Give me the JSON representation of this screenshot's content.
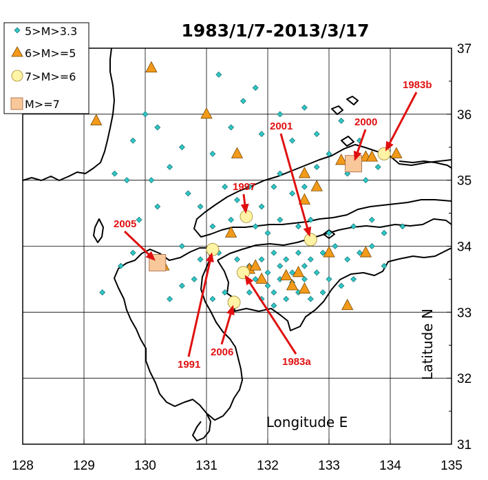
{
  "title": "1983/1/7-2013/3/17",
  "axes": {
    "xlabel": "Longitude E",
    "ylabel": "Latitude N",
    "xlim": [
      128,
      135
    ],
    "ylim": [
      31,
      37
    ],
    "xticks": [
      "128",
      "129",
      "130",
      "131",
      "132",
      "133",
      "134",
      "135"
    ],
    "yticks": [
      "31",
      "32",
      "33",
      "34",
      "35",
      "36",
      "37"
    ]
  },
  "legend": {
    "placement": "top-left",
    "items": [
      {
        "label": "5>M>3.3",
        "marker": "diamond"
      },
      {
        "label": "6>M>=5",
        "marker": "triangle"
      },
      {
        "label": "7>M>=6",
        "marker": "circle"
      },
      {
        "label": "M>=7",
        "marker": "square"
      }
    ]
  },
  "colors": {
    "small": "#2ec6c6",
    "medium": "#f39a1a",
    "large": "#fff3a6",
    "major": "#f9c89a",
    "annotation": "#e01010",
    "coast": "#000000"
  },
  "chart_data": {
    "type": "scatter",
    "series": [
      {
        "name": "5>M>3.3",
        "marker": "diamond",
        "points": [
          [
            131.2,
            36.6
          ],
          [
            131.8,
            36.4
          ],
          [
            131.6,
            36.2
          ],
          [
            132.2,
            36.0
          ],
          [
            131.4,
            35.8
          ],
          [
            131.9,
            35.7
          ],
          [
            132.4,
            35.6
          ],
          [
            131.1,
            35.4
          ],
          [
            130.6,
            35.5
          ],
          [
            130.4,
            35.2
          ],
          [
            130.1,
            35.0
          ],
          [
            130.7,
            34.8
          ],
          [
            130.9,
            34.6
          ],
          [
            131.3,
            34.9
          ],
          [
            131.5,
            34.7
          ],
          [
            131.7,
            34.9
          ],
          [
            131.9,
            34.6
          ],
          [
            132.1,
            34.9
          ],
          [
            132.4,
            34.8
          ],
          [
            132.6,
            34.9
          ],
          [
            132.8,
            35.2
          ],
          [
            133.0,
            35.4
          ],
          [
            133.3,
            35.1
          ],
          [
            133.6,
            35.0
          ],
          [
            133.8,
            35.2
          ],
          [
            132.2,
            35.1
          ],
          [
            131.1,
            34.3
          ],
          [
            131.4,
            34.4
          ],
          [
            131.8,
            34.3
          ],
          [
            132.0,
            34.2
          ],
          [
            132.2,
            34.4
          ],
          [
            132.5,
            34.3
          ],
          [
            132.7,
            34.4
          ],
          [
            133.0,
            34.2
          ],
          [
            133.4,
            34.3
          ],
          [
            133.7,
            34.4
          ],
          [
            133.9,
            34.2
          ],
          [
            134.2,
            34.3
          ],
          [
            130.6,
            34.0
          ],
          [
            130.9,
            33.8
          ],
          [
            131.2,
            33.9
          ],
          [
            131.5,
            33.8
          ],
          [
            131.7,
            33.7
          ],
          [
            131.9,
            33.8
          ],
          [
            132.1,
            33.9
          ],
          [
            132.3,
            33.8
          ],
          [
            132.5,
            33.9
          ],
          [
            132.7,
            33.8
          ],
          [
            132.9,
            33.9
          ],
          [
            133.1,
            34.0
          ],
          [
            133.3,
            33.8
          ],
          [
            133.5,
            33.9
          ],
          [
            133.7,
            34.0
          ],
          [
            133.9,
            33.7
          ],
          [
            131.6,
            33.6
          ],
          [
            131.8,
            33.5
          ],
          [
            132.0,
            33.6
          ],
          [
            132.2,
            33.5
          ],
          [
            132.4,
            33.6
          ],
          [
            132.6,
            33.5
          ],
          [
            132.8,
            33.6
          ],
          [
            133.0,
            33.5
          ],
          [
            133.2,
            33.4
          ],
          [
            133.4,
            33.5
          ],
          [
            131.7,
            33.3
          ],
          [
            131.9,
            33.2
          ],
          [
            132.1,
            33.3
          ],
          [
            132.3,
            33.2
          ],
          [
            132.5,
            33.3
          ],
          [
            132.7,
            33.2
          ],
          [
            132.9,
            33.3
          ],
          [
            132.0,
            33.4
          ],
          [
            132.2,
            33.7
          ],
          [
            132.4,
            33.45
          ],
          [
            132.6,
            33.7
          ],
          [
            132.1,
            33.1
          ],
          [
            131.3,
            33.3
          ],
          [
            131.1,
            33.2
          ],
          [
            130.8,
            33.5
          ],
          [
            130.6,
            33.4
          ],
          [
            130.4,
            33.2
          ],
          [
            129.6,
            33.7
          ],
          [
            129.8,
            33.9
          ],
          [
            129.3,
            33.3
          ],
          [
            129.9,
            34.4
          ],
          [
            130.2,
            34.6
          ],
          [
            129.5,
            35.1
          ],
          [
            129.7,
            35.0
          ],
          [
            130.2,
            35.8
          ],
          [
            130.0,
            36.0
          ],
          [
            129.8,
            35.6
          ],
          [
            132.8,
            35.7
          ],
          [
            133.2,
            35.9
          ],
          [
            133.5,
            35.6
          ],
          [
            132.6,
            36.1
          ]
        ]
      },
      {
        "name": "6>M>=5",
        "marker": "triangle",
        "points": [
          [
            130.1,
            36.7
          ],
          [
            129.2,
            35.9
          ],
          [
            131.0,
            36.0
          ],
          [
            131.5,
            35.4
          ],
          [
            132.6,
            35.1
          ],
          [
            132.8,
            34.9
          ],
          [
            132.6,
            34.7
          ],
          [
            133.2,
            35.3
          ],
          [
            133.6,
            35.35
          ],
          [
            133.7,
            35.35
          ],
          [
            134.1,
            35.4
          ],
          [
            131.4,
            34.2
          ],
          [
            133.0,
            33.9
          ],
          [
            133.6,
            33.9
          ],
          [
            131.7,
            33.65
          ],
          [
            131.9,
            33.5
          ],
          [
            132.3,
            33.55
          ],
          [
            132.5,
            33.6
          ],
          [
            132.4,
            33.4
          ],
          [
            132.6,
            33.35
          ],
          [
            133.3,
            33.1
          ],
          [
            130.3,
            33.7
          ],
          [
            131.8,
            33.7
          ]
        ]
      },
      {
        "name": "7>M>=6",
        "marker": "circle",
        "points": [
          [
            131.1,
            33.95
          ],
          [
            131.65,
            34.45
          ],
          [
            132.7,
            34.1
          ],
          [
            133.9,
            35.4
          ],
          [
            131.6,
            33.6
          ],
          [
            131.45,
            33.15
          ]
        ]
      },
      {
        "name": "M>=7",
        "marker": "square",
        "points": [
          [
            133.4,
            35.25
          ],
          [
            130.2,
            33.75
          ]
        ]
      }
    ],
    "annotations": [
      {
        "label": "1983b",
        "point": [
          133.9,
          35.4
        ]
      },
      {
        "label": "2000",
        "point": [
          133.4,
          35.25
        ]
      },
      {
        "label": "2001",
        "point": [
          132.7,
          34.1
        ]
      },
      {
        "label": "1997",
        "point": [
          131.65,
          34.45
        ]
      },
      {
        "label": "2005",
        "point": [
          130.2,
          33.75
        ]
      },
      {
        "label": "1991",
        "point": [
          131.1,
          33.95
        ]
      },
      {
        "label": "2006",
        "point": [
          131.45,
          33.15
        ]
      },
      {
        "label": "1983a",
        "point": [
          131.6,
          33.6
        ]
      }
    ]
  }
}
